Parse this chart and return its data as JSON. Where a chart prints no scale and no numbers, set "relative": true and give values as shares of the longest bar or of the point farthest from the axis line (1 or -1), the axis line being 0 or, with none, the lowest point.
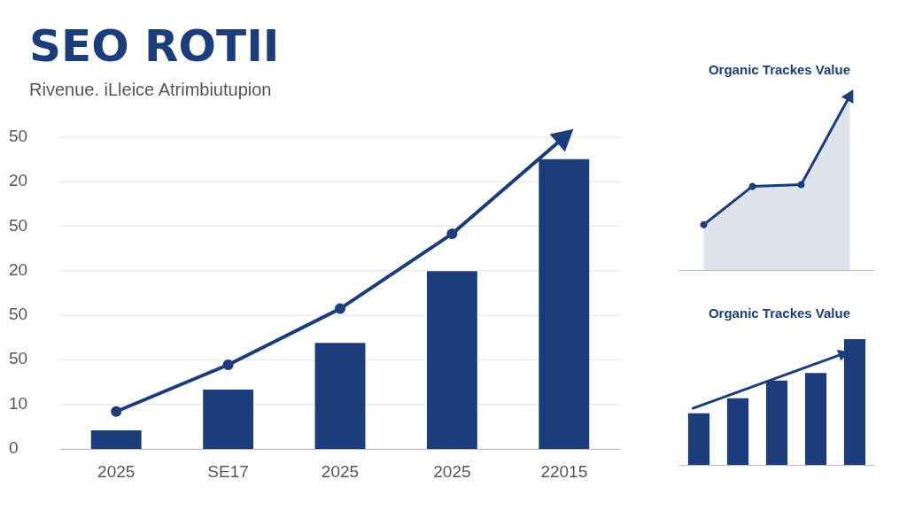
{
  "chart_data": [
    {
      "type": "bar",
      "title": "SEO ROTII",
      "subtitle": "Rivenue. iLleice Atrimbiutupion",
      "relative": true,
      "categories": [
        "2025",
        "SE17",
        "2025",
        "2025",
        "22015"
      ],
      "series": [
        {
          "color": "#1b3d7c",
          "values": [
            0.06,
            0.19,
            0.34,
            0.57,
            0.93
          ]
        },
        {
          "type": "line",
          "color": "#1b3d7c",
          "values": [
            0.12,
            0.27,
            0.45,
            0.69,
            1
          ]
        }
      ],
      "annotations": [
        "50",
        "20",
        "50",
        "20",
        "50",
        "50",
        "10",
        "0"
      ],
      "grid": "y",
      "marker": "circle",
      "line_style": "solid",
      "tick_labels": "x"
    },
    {
      "type": "area",
      "title": "Organic Trackes Value",
      "relative": true,
      "categories": [
        null,
        null,
        null,
        null
      ],
      "series": [
        {
          "color": "#1b3d7c",
          "values": [
            0.26,
            0.48,
            0.49,
            1
          ]
        }
      ],
      "marker": "circle",
      "tick_labels": false
    },
    {
      "type": "bar",
      "title": "Organic Trackes Value",
      "relative": true,
      "categories": [
        null,
        null,
        null,
        null,
        null
      ],
      "series": [
        {
          "color": "#1b3d7c",
          "values": [
            0.41,
            0.53,
            0.67,
            0.73,
            1
          ]
        }
      ],
      "tick_labels": false
    }
  ]
}
